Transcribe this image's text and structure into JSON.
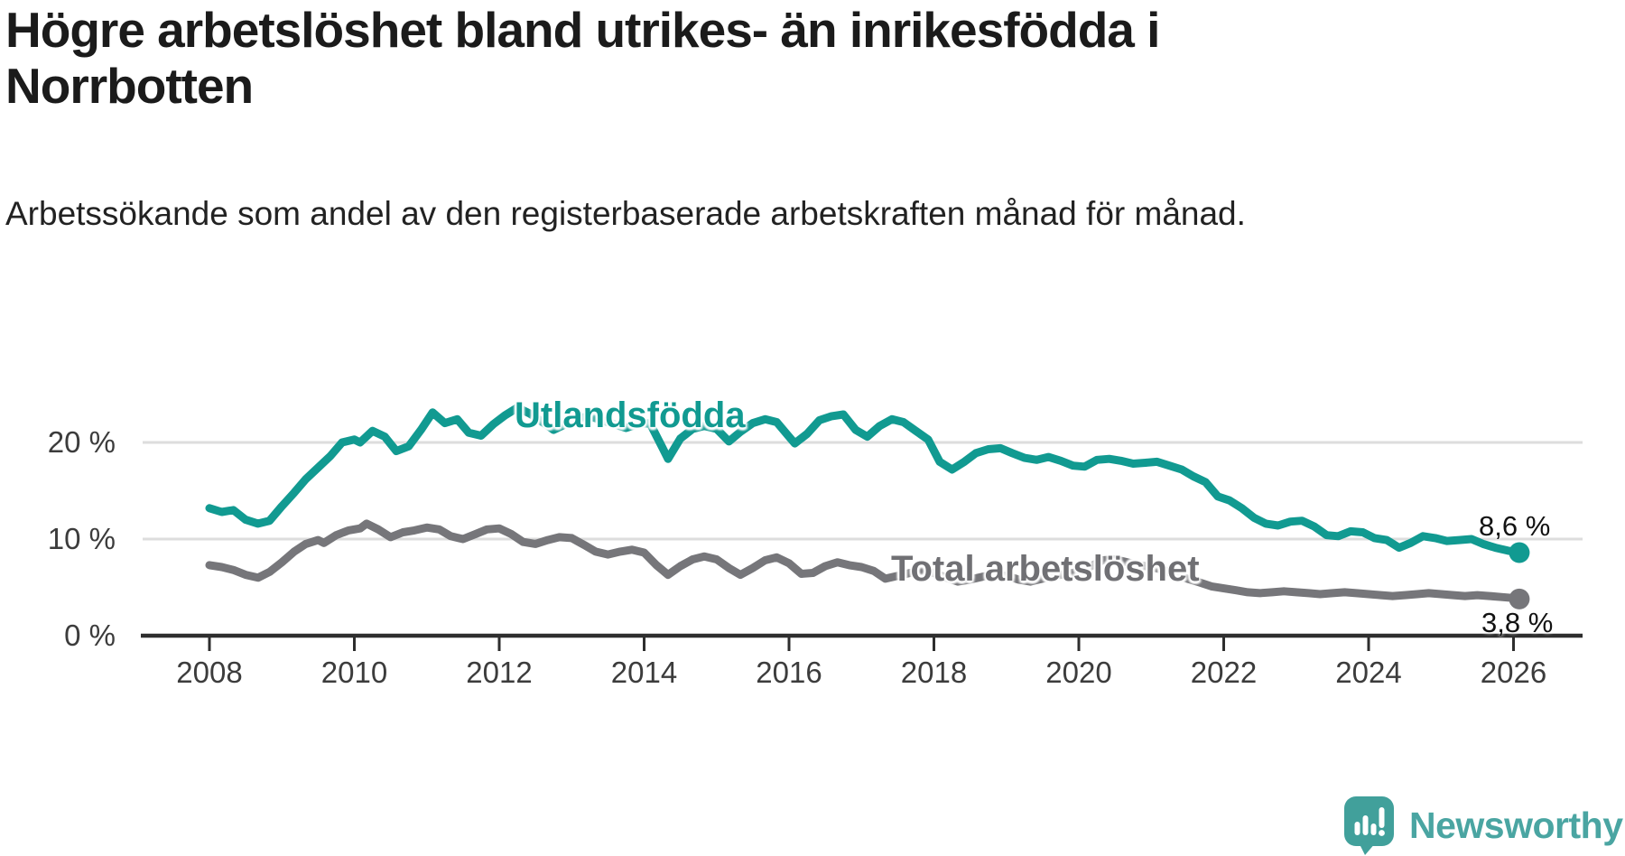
{
  "header": {
    "title": "Högre arbetslöshet bland utrikes- än inrikesfödda i Norrbotten",
    "subtitle": "Arbetssökande som andel av den registerbaserade arbetskraften månad för månad."
  },
  "chart_data": {
    "type": "line",
    "title": "Högre arbetslöshet bland utrikes- än inrikesfödda i Norrbotten",
    "subtitle": "Arbetssökande som andel av den registerbaserade arbetskraften månad för månad.",
    "unit": "%",
    "grid": "horizontal-only",
    "colors": {
      "grid": "#dddddd",
      "axis": "#2e2e2e",
      "tick_label": "#3c3c3c",
      "end_label": "#121212"
    },
    "x_axis": {
      "ticks": [
        2008,
        2010,
        2012,
        2014,
        2016,
        2018,
        2020,
        2022,
        2024,
        2026
      ],
      "tick_labels": [
        "2008",
        "2010",
        "2012",
        "2014",
        "2016",
        "2018",
        "2020",
        "2022",
        "2024",
        "2026"
      ],
      "range": [
        2007.1,
        2026.95
      ]
    },
    "y_axis": {
      "ticks_pct": [
        20,
        10,
        0
      ],
      "tick_labels": [
        "20 %",
        "10 %",
        "0 %"
      ],
      "range": [
        0,
        25.5
      ]
    },
    "series": [
      {
        "name": "Utlandsfödda",
        "color": "#119a91",
        "end_label": "8,6 %",
        "end_value": 8.6,
        "points": [
          [
            2008.0,
            13.2
          ],
          [
            2008.17,
            12.8
          ],
          [
            2008.33,
            13.0
          ],
          [
            2008.5,
            12.0
          ],
          [
            2008.67,
            11.6
          ],
          [
            2008.83,
            11.9
          ],
          [
            2009.0,
            13.4
          ],
          [
            2009.17,
            14.8
          ],
          [
            2009.33,
            16.2
          ],
          [
            2009.5,
            17.4
          ],
          [
            2009.67,
            18.6
          ],
          [
            2009.83,
            20.0
          ],
          [
            2010.0,
            20.3
          ],
          [
            2010.08,
            20.0
          ],
          [
            2010.25,
            21.2
          ],
          [
            2010.42,
            20.6
          ],
          [
            2010.58,
            19.1
          ],
          [
            2010.75,
            19.6
          ],
          [
            2010.92,
            21.3
          ],
          [
            2011.08,
            23.1
          ],
          [
            2011.25,
            22.0
          ],
          [
            2011.42,
            22.4
          ],
          [
            2011.58,
            21.0
          ],
          [
            2011.75,
            20.7
          ],
          [
            2011.92,
            21.9
          ],
          [
            2012.08,
            22.8
          ],
          [
            2012.25,
            23.6
          ],
          [
            2012.42,
            23.0
          ],
          [
            2012.58,
            22.2
          ],
          [
            2012.75,
            21.3
          ],
          [
            2012.92,
            21.9
          ],
          [
            2013.08,
            22.5
          ],
          [
            2013.25,
            22.7
          ],
          [
            2013.42,
            22.3
          ],
          [
            2013.58,
            21.9
          ],
          [
            2013.75,
            21.5
          ],
          [
            2013.92,
            21.9
          ],
          [
            2014.08,
            22.0
          ],
          [
            2014.25,
            19.5
          ],
          [
            2014.33,
            18.3
          ],
          [
            2014.5,
            20.4
          ],
          [
            2014.67,
            21.4
          ],
          [
            2014.83,
            21.7
          ],
          [
            2015.0,
            21.4
          ],
          [
            2015.17,
            20.1
          ],
          [
            2015.33,
            21.1
          ],
          [
            2015.5,
            22.0
          ],
          [
            2015.67,
            22.4
          ],
          [
            2015.83,
            22.1
          ],
          [
            2016.0,
            20.6
          ],
          [
            2016.08,
            19.9
          ],
          [
            2016.25,
            20.9
          ],
          [
            2016.42,
            22.3
          ],
          [
            2016.58,
            22.7
          ],
          [
            2016.75,
            22.9
          ],
          [
            2016.92,
            21.3
          ],
          [
            2017.08,
            20.6
          ],
          [
            2017.25,
            21.7
          ],
          [
            2017.42,
            22.4
          ],
          [
            2017.58,
            22.1
          ],
          [
            2017.75,
            21.2
          ],
          [
            2017.92,
            20.3
          ],
          [
            2018.08,
            18.0
          ],
          [
            2018.25,
            17.2
          ],
          [
            2018.42,
            18.0
          ],
          [
            2018.58,
            18.9
          ],
          [
            2018.75,
            19.3
          ],
          [
            2018.92,
            19.4
          ],
          [
            2019.08,
            18.9
          ],
          [
            2019.25,
            18.4
          ],
          [
            2019.42,
            18.2
          ],
          [
            2019.58,
            18.5
          ],
          [
            2019.75,
            18.1
          ],
          [
            2019.92,
            17.6
          ],
          [
            2020.08,
            17.5
          ],
          [
            2020.25,
            18.2
          ],
          [
            2020.42,
            18.3
          ],
          [
            2020.58,
            18.1
          ],
          [
            2020.75,
            17.8
          ],
          [
            2020.92,
            17.9
          ],
          [
            2021.08,
            18.0
          ],
          [
            2021.25,
            17.6
          ],
          [
            2021.42,
            17.2
          ],
          [
            2021.58,
            16.5
          ],
          [
            2021.75,
            15.9
          ],
          [
            2021.92,
            14.4
          ],
          [
            2022.08,
            14.0
          ],
          [
            2022.25,
            13.2
          ],
          [
            2022.42,
            12.2
          ],
          [
            2022.58,
            11.6
          ],
          [
            2022.75,
            11.4
          ],
          [
            2022.92,
            11.8
          ],
          [
            2023.08,
            11.9
          ],
          [
            2023.25,
            11.3
          ],
          [
            2023.42,
            10.4
          ],
          [
            2023.58,
            10.3
          ],
          [
            2023.75,
            10.8
          ],
          [
            2023.92,
            10.7
          ],
          [
            2024.08,
            10.1
          ],
          [
            2024.25,
            9.9
          ],
          [
            2024.42,
            9.1
          ],
          [
            2024.58,
            9.6
          ],
          [
            2024.75,
            10.3
          ],
          [
            2024.92,
            10.1
          ],
          [
            2025.08,
            9.8
          ],
          [
            2025.25,
            9.9
          ],
          [
            2025.42,
            10.0
          ],
          [
            2025.58,
            9.5
          ],
          [
            2025.75,
            9.1
          ],
          [
            2025.92,
            8.8
          ],
          [
            2026.08,
            8.6
          ]
        ]
      },
      {
        "name": "Total arbetslöshet",
        "color": "#76767a",
        "label_color": "#707074",
        "end_label": "3,8 %",
        "end_value": 3.8,
        "points": [
          [
            2008.0,
            7.3
          ],
          [
            2008.17,
            7.1
          ],
          [
            2008.33,
            6.8
          ],
          [
            2008.5,
            6.3
          ],
          [
            2008.67,
            6.0
          ],
          [
            2008.83,
            6.6
          ],
          [
            2009.0,
            7.6
          ],
          [
            2009.17,
            8.7
          ],
          [
            2009.33,
            9.5
          ],
          [
            2009.5,
            9.9
          ],
          [
            2009.58,
            9.6
          ],
          [
            2009.75,
            10.4
          ],
          [
            2009.92,
            10.9
          ],
          [
            2010.08,
            11.1
          ],
          [
            2010.17,
            11.6
          ],
          [
            2010.33,
            11.0
          ],
          [
            2010.5,
            10.2
          ],
          [
            2010.67,
            10.7
          ],
          [
            2010.83,
            10.9
          ],
          [
            2011.0,
            11.2
          ],
          [
            2011.17,
            11.0
          ],
          [
            2011.33,
            10.3
          ],
          [
            2011.5,
            10.0
          ],
          [
            2011.67,
            10.5
          ],
          [
            2011.83,
            11.0
          ],
          [
            2012.0,
            11.1
          ],
          [
            2012.17,
            10.5
          ],
          [
            2012.33,
            9.7
          ],
          [
            2012.5,
            9.5
          ],
          [
            2012.67,
            9.9
          ],
          [
            2012.83,
            10.2
          ],
          [
            2013.0,
            10.1
          ],
          [
            2013.17,
            9.4
          ],
          [
            2013.33,
            8.7
          ],
          [
            2013.5,
            8.4
          ],
          [
            2013.67,
            8.7
          ],
          [
            2013.83,
            8.9
          ],
          [
            2014.0,
            8.6
          ],
          [
            2014.17,
            7.3
          ],
          [
            2014.33,
            6.3
          ],
          [
            2014.5,
            7.2
          ],
          [
            2014.67,
            7.9
          ],
          [
            2014.83,
            8.2
          ],
          [
            2015.0,
            7.9
          ],
          [
            2015.17,
            7.0
          ],
          [
            2015.33,
            6.3
          ],
          [
            2015.5,
            7.0
          ],
          [
            2015.67,
            7.8
          ],
          [
            2015.83,
            8.1
          ],
          [
            2016.0,
            7.5
          ],
          [
            2016.17,
            6.4
          ],
          [
            2016.33,
            6.5
          ],
          [
            2016.5,
            7.2
          ],
          [
            2016.67,
            7.6
          ],
          [
            2016.83,
            7.3
          ],
          [
            2017.0,
            7.1
          ],
          [
            2017.17,
            6.7
          ],
          [
            2017.33,
            5.9
          ],
          [
            2017.5,
            6.2
          ],
          [
            2017.67,
            6.5
          ],
          [
            2017.83,
            6.7
          ],
          [
            2018.0,
            6.5
          ],
          [
            2018.17,
            6.0
          ],
          [
            2018.33,
            5.6
          ],
          [
            2018.5,
            5.8
          ],
          [
            2018.67,
            6.1
          ],
          [
            2018.83,
            6.3
          ],
          [
            2019.0,
            6.2
          ],
          [
            2019.17,
            5.8
          ],
          [
            2019.33,
            5.6
          ],
          [
            2019.5,
            5.9
          ],
          [
            2019.67,
            6.2
          ],
          [
            2019.83,
            6.4
          ],
          [
            2020.0,
            6.6
          ],
          [
            2020.17,
            7.2
          ],
          [
            2020.33,
            7.8
          ],
          [
            2020.5,
            7.9
          ],
          [
            2020.67,
            7.6
          ],
          [
            2020.83,
            7.3
          ],
          [
            2021.0,
            7.1
          ],
          [
            2021.17,
            6.8
          ],
          [
            2021.33,
            6.3
          ],
          [
            2021.5,
            5.9
          ],
          [
            2021.67,
            5.5
          ],
          [
            2021.83,
            5.1
          ],
          [
            2022.0,
            4.9
          ],
          [
            2022.17,
            4.7
          ],
          [
            2022.33,
            4.5
          ],
          [
            2022.5,
            4.4
          ],
          [
            2022.67,
            4.5
          ],
          [
            2022.83,
            4.6
          ],
          [
            2023.0,
            4.5
          ],
          [
            2023.17,
            4.4
          ],
          [
            2023.33,
            4.3
          ],
          [
            2023.5,
            4.4
          ],
          [
            2023.67,
            4.5
          ],
          [
            2023.83,
            4.4
          ],
          [
            2024.0,
            4.3
          ],
          [
            2024.17,
            4.2
          ],
          [
            2024.33,
            4.1
          ],
          [
            2024.5,
            4.2
          ],
          [
            2024.67,
            4.3
          ],
          [
            2024.83,
            4.4
          ],
          [
            2025.0,
            4.3
          ],
          [
            2025.17,
            4.2
          ],
          [
            2025.33,
            4.1
          ],
          [
            2025.5,
            4.2
          ],
          [
            2025.67,
            4.1
          ],
          [
            2025.83,
            4.0
          ],
          [
            2026.0,
            3.9
          ],
          [
            2026.08,
            3.8
          ]
        ]
      }
    ],
    "legend_position": "inline-labels-on-lines"
  },
  "footer": {
    "brand": "Newsworthy",
    "brand_color": "#4aa5a2",
    "logo_color": "#41a09b",
    "logo_icon": "newsworthy-speech-bubble-bar-chart-icon"
  }
}
